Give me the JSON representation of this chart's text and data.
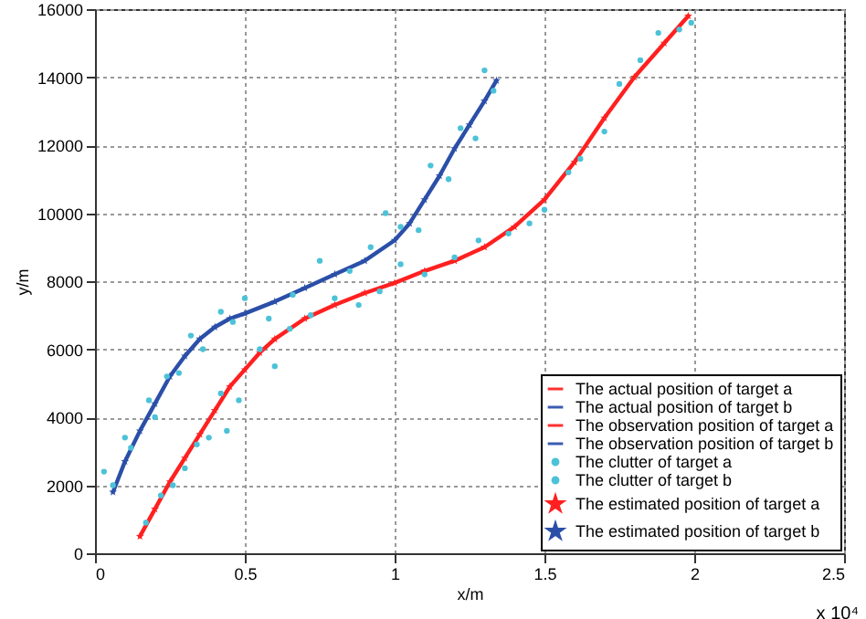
{
  "chart_data": {
    "type": "line",
    "xlabel": "x/m",
    "ylabel": "y/m",
    "xlim": [
      0,
      2.5
    ],
    "xticks": [
      0,
      0.5,
      1,
      1.5,
      2,
      2.5
    ],
    "ylim": [
      0,
      16000
    ],
    "yticks": [
      0,
      2000,
      4000,
      6000,
      8000,
      10000,
      12000,
      14000,
      16000
    ],
    "grid": true,
    "legend": "bottom right",
    "annotations": [
      "x 10⁴"
    ],
    "series": [
      {
        "name": "The actual position of target a",
        "color": "#ff3030"
      },
      {
        "name": "The actual position of target b",
        "color": "#3a5db0"
      },
      {
        "name": "The observation position of target a",
        "color": "#ff3030"
      },
      {
        "name": "The observation position of target b",
        "color": "#3a5db0"
      },
      {
        "name": "The clutter of target a",
        "type": "scatter",
        "marker": "circle",
        "color": "#4cc2d8",
        "x": [
          0.17,
          0.22,
          0.26,
          0.3,
          0.34,
          0.38,
          0.42,
          0.44,
          0.48,
          0.55,
          0.6,
          0.65,
          0.72,
          0.8,
          0.88,
          0.95,
          1.02,
          1.1,
          1.2,
          1.28,
          1.38,
          1.45,
          1.5,
          1.58,
          1.62,
          1.7,
          1.75,
          1.82,
          1.88,
          1.95,
          1.99
        ],
        "values": [
          900,
          1700,
          2000,
          2500,
          3200,
          3400,
          4700,
          3600,
          4500,
          6000,
          5500,
          6600,
          7000,
          7500,
          7300,
          7700,
          8500,
          8200,
          8700,
          9200,
          9400,
          9700,
          10100,
          11200,
          11600,
          12400,
          13800,
          14500,
          15300,
          15400,
          15600
        ]
      },
      {
        "name": "The clutter of target b",
        "type": "scatter",
        "marker": "circle",
        "color": "#4cc2d8",
        "x": [
          0.03,
          0.06,
          0.1,
          0.12,
          0.18,
          0.2,
          0.24,
          0.28,
          0.32,
          0.36,
          0.42,
          0.46,
          0.5,
          0.58,
          0.66,
          0.75,
          0.85,
          0.92,
          0.97,
          1.02,
          1.08,
          1.12,
          1.18,
          1.22,
          1.27,
          1.3,
          1.33
        ],
        "values": [
          2400,
          2000,
          3400,
          3100,
          4500,
          4000,
          5200,
          5300,
          6400,
          6000,
          7100,
          6800,
          7500,
          6900,
          7600,
          8600,
          8300,
          9000,
          10000,
          9600,
          9500,
          11400,
          11000,
          12500,
          12200,
          14200,
          13600
        ]
      },
      {
        "name": "The estimated position of target a",
        "marker": "star",
        "color": "#ff2020",
        "x": [
          0.15,
          0.2,
          0.25,
          0.3,
          0.35,
          0.4,
          0.45,
          0.5,
          0.55,
          0.6,
          0.7,
          0.8,
          0.9,
          1.0,
          1.1,
          1.2,
          1.3,
          1.4,
          1.5,
          1.6,
          1.7,
          1.8,
          1.9,
          1.98
        ],
        "values": [
          500,
          1300,
          2100,
          2800,
          3500,
          4200,
          4900,
          5400,
          5900,
          6300,
          6900,
          7300,
          7650,
          7950,
          8300,
          8600,
          9000,
          9600,
          10400,
          11500,
          12800,
          14000,
          15000,
          15800
        ]
      },
      {
        "name": "The estimated position of target b",
        "marker": "star",
        "color": "#2b4fa8",
        "x": [
          0.06,
          0.1,
          0.15,
          0.2,
          0.25,
          0.3,
          0.35,
          0.4,
          0.45,
          0.5,
          0.6,
          0.7,
          0.8,
          0.9,
          1.0,
          1.05,
          1.1,
          1.15,
          1.2,
          1.25,
          1.3,
          1.34
        ],
        "values": [
          1800,
          2700,
          3600,
          4400,
          5200,
          5800,
          6300,
          6650,
          6900,
          7050,
          7400,
          7800,
          8200,
          8600,
          9200,
          9700,
          10400,
          11100,
          11900,
          12600,
          13300,
          13900
        ]
      }
    ]
  }
}
